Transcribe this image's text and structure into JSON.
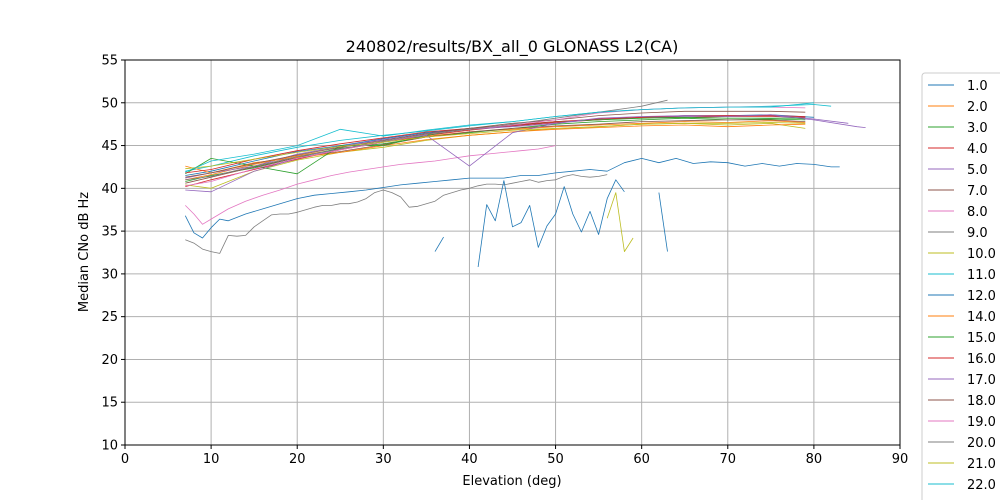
{
  "chart_data": {
    "type": "line",
    "title": "240802/results/BX_all_0 GLONASS L2(CA)",
    "xlabel": "Elevation (deg)",
    "ylabel": "Median CNo dB Hz",
    "xlim": [
      0,
      90
    ],
    "ylim": [
      10,
      55
    ],
    "xticks": [
      0,
      10,
      20,
      30,
      40,
      50,
      60,
      70,
      80,
      90
    ],
    "yticks": [
      10,
      15,
      20,
      25,
      30,
      35,
      40,
      45,
      50,
      55
    ],
    "grid": true,
    "legend_placement": "right, outside plot",
    "series": [
      {
        "name": "1.0",
        "color": "#1f77b4",
        "x": [
          7,
          10,
          15,
          20,
          25,
          30,
          35,
          40,
          45,
          50,
          55,
          60,
          65,
          70,
          75,
          80
        ],
        "y": [
          41.5,
          42.0,
          43.2,
          44.3,
          45.0,
          45.8,
          46.5,
          47.0,
          47.3,
          47.8,
          48.0,
          48.3,
          48.5,
          48.5,
          48.6,
          48.3
        ]
      },
      {
        "name": "2.0",
        "color": "#ff7f0e",
        "x": [
          7,
          10,
          15,
          20,
          25,
          30,
          35,
          40,
          45,
          50,
          55,
          60,
          65,
          70,
          75,
          79
        ],
        "y": [
          41.0,
          41.6,
          42.8,
          43.8,
          44.6,
          45.4,
          46.1,
          46.6,
          46.9,
          47.2,
          47.4,
          47.6,
          47.8,
          47.7,
          47.9,
          47.7
        ]
      },
      {
        "name": "3.0",
        "color": "#2ca02c",
        "x": [
          7,
          10,
          15,
          20,
          25,
          30,
          35,
          40,
          45,
          50,
          55,
          60,
          65,
          70,
          75,
          79
        ],
        "y": [
          40.8,
          41.5,
          42.4,
          43.6,
          44.7,
          45.2,
          46.0,
          46.5,
          47.0,
          47.5,
          47.8,
          48.0,
          48.2,
          48.0,
          48.1,
          48.0
        ]
      },
      {
        "name": "4.0",
        "color": "#d62728",
        "x": [
          7,
          10,
          15,
          20,
          25,
          30,
          35,
          40,
          45,
          50,
          55,
          60,
          65,
          70,
          75,
          79
        ],
        "y": [
          40.2,
          41.0,
          42.2,
          43.4,
          44.5,
          45.4,
          46.2,
          46.8,
          47.3,
          47.7,
          48.0,
          48.3,
          48.3,
          48.4,
          48.4,
          48.3
        ]
      },
      {
        "name": "5.0",
        "color": "#9467bd",
        "x": [
          7,
          10,
          15,
          20,
          25,
          30,
          35,
          40,
          45,
          50,
          55,
          60,
          65,
          70,
          75,
          80,
          85,
          86
        ],
        "y": [
          41.2,
          41.8,
          42.6,
          44.0,
          44.9,
          45.7,
          46.4,
          46.9,
          47.2,
          47.6,
          48.1,
          48.3,
          48.4,
          48.5,
          48.5,
          48.0,
          47.2,
          47.1
        ]
      },
      {
        "name": "7.0",
        "color": "#8c564b",
        "x": [
          7,
          10,
          15,
          20,
          25,
          30,
          35,
          40,
          45,
          50,
          55,
          60,
          65,
          70,
          75,
          79
        ],
        "y": [
          40.6,
          41.3,
          42.5,
          43.6,
          44.3,
          45.1,
          46.0,
          46.6,
          47.0,
          47.3,
          47.5,
          47.8,
          47.9,
          48.0,
          48.0,
          47.8
        ]
      },
      {
        "name": "8.0",
        "color": "#e377c2",
        "x": [
          7,
          8,
          9,
          10,
          12,
          14,
          16,
          18,
          20,
          22,
          24,
          26,
          28,
          30,
          32,
          34,
          36,
          38,
          40,
          42,
          44,
          46,
          48,
          50
        ],
        "y": [
          38.0,
          37.0,
          35.8,
          36.4,
          37.6,
          38.5,
          39.2,
          39.8,
          40.5,
          41.0,
          41.5,
          41.9,
          42.2,
          42.5,
          42.8,
          43.0,
          43.2,
          43.5,
          43.8,
          44.0,
          44.2,
          44.4,
          44.6,
          45.0
        ]
      },
      {
        "name": "9.0",
        "color": "#7f7f7f",
        "x": [
          7,
          8,
          9,
          10,
          11,
          12,
          13,
          14,
          15,
          16,
          17,
          18,
          19,
          20,
          21,
          22,
          23,
          24,
          25,
          26,
          27,
          28,
          29,
          30,
          31,
          32,
          33,
          34,
          35,
          36,
          37,
          38,
          39,
          40,
          41,
          42,
          43,
          44,
          45,
          46,
          47,
          48,
          49,
          50,
          51,
          52,
          53,
          54,
          55,
          56
        ],
        "y": [
          34.0,
          33.6,
          32.9,
          32.6,
          32.4,
          34.5,
          34.4,
          34.5,
          35.5,
          36.2,
          36.9,
          37.0,
          37.0,
          37.2,
          37.5,
          37.8,
          38.0,
          38.0,
          38.2,
          38.2,
          38.4,
          38.8,
          39.5,
          39.8,
          39.5,
          39.0,
          37.8,
          37.9,
          38.2,
          38.5,
          39.2,
          39.5,
          39.8,
          40.0,
          40.3,
          40.5,
          40.5,
          40.4,
          40.6,
          40.8,
          41.0,
          40.7,
          40.9,
          41.0,
          41.4,
          41.6,
          41.4,
          41.3,
          41.4,
          41.6
        ]
      },
      {
        "name": "10.0",
        "color": "#bcbd22",
        "x": [
          7,
          10,
          15,
          20,
          25,
          30,
          35,
          40,
          45,
          50,
          55,
          60,
          65,
          70,
          75,
          79
        ],
        "y": [
          40.4,
          40.0,
          42.0,
          43.3,
          44.2,
          44.8,
          45.6,
          46.2,
          46.6,
          47.0,
          47.2,
          47.5,
          47.6,
          47.4,
          47.6,
          47.0
        ]
      },
      {
        "name": "11.0",
        "color": "#17becf",
        "x": [
          7,
          10,
          15,
          20,
          25,
          30,
          35,
          40,
          45,
          50,
          55,
          60,
          65,
          70,
          75,
          80,
          82
        ],
        "y": [
          42.0,
          42.6,
          43.8,
          44.8,
          45.6,
          46.2,
          46.7,
          47.3,
          47.8,
          48.4,
          48.9,
          49.2,
          49.4,
          49.5,
          49.6,
          49.8,
          49.6
        ]
      },
      {
        "name": "12.0",
        "color": "#1f77b4",
        "x": [
          7,
          8,
          9,
          10,
          11,
          12,
          14,
          16,
          18,
          20,
          22,
          24,
          26,
          28,
          30,
          32,
          34,
          36,
          38,
          40,
          42,
          44,
          46,
          48,
          50,
          52,
          54,
          56,
          58,
          60,
          62,
          64,
          66,
          68,
          70,
          72,
          74,
          76,
          78,
          80,
          82,
          83
        ],
        "y": [
          36.8,
          34.8,
          34.2,
          35.4,
          36.4,
          36.2,
          37.0,
          37.6,
          38.2,
          38.8,
          39.2,
          39.4,
          39.6,
          39.8,
          40.1,
          40.4,
          40.6,
          40.8,
          41.0,
          41.2,
          41.2,
          41.2,
          41.5,
          41.5,
          41.8,
          42.0,
          42.2,
          42.0,
          43.0,
          43.5,
          43.0,
          43.5,
          42.9,
          43.1,
          43.0,
          42.6,
          42.9,
          42.6,
          42.9,
          42.8,
          42.5,
          42.5
        ]
      },
      {
        "name": "14.0",
        "color": "#ff7f0e",
        "x": [
          7,
          10,
          15,
          20,
          25,
          30,
          35,
          40,
          45,
          50,
          55,
          60,
          65,
          70,
          75,
          79
        ],
        "y": [
          42.6,
          41.8,
          43.0,
          43.6,
          44.2,
          45.0,
          45.7,
          46.2,
          46.6,
          46.9,
          47.1,
          47.3,
          47.4,
          47.2,
          47.4,
          47.5
        ]
      },
      {
        "name": "15.0",
        "color": "#2ca02c",
        "x": [
          7,
          10,
          15,
          20,
          25,
          30,
          35,
          40,
          45,
          50,
          55,
          60,
          65,
          70,
          75,
          79
        ],
        "y": [
          41.7,
          43.5,
          42.6,
          41.7,
          45.0,
          45.0,
          46.2,
          47.0,
          47.4,
          47.8,
          48.0,
          48.2,
          48.3,
          48.2,
          48.2,
          48.2
        ]
      },
      {
        "name": "16.0",
        "color": "#d62728",
        "x": [
          7,
          10,
          15,
          20,
          25,
          30,
          35,
          40,
          45,
          50,
          55,
          60,
          65,
          70,
          75,
          79
        ],
        "y": [
          41.8,
          42.2,
          43.4,
          44.4,
          45.2,
          45.9,
          46.6,
          47.0,
          47.4,
          47.8,
          48.1,
          48.3,
          48.5,
          48.5,
          48.5,
          48.4
        ]
      },
      {
        "name": "17.0",
        "color": "#9467bd",
        "x": [
          7,
          10,
          15,
          20,
          25,
          30,
          35,
          40,
          45,
          50,
          55,
          60,
          65,
          70,
          75,
          80,
          84
        ],
        "y": [
          39.8,
          39.6,
          42.0,
          43.5,
          44.6,
          45.5,
          46.2,
          42.6,
          46.5,
          47.6,
          48.2,
          48.4,
          48.5,
          48.4,
          48.6,
          48.1,
          47.6
        ]
      },
      {
        "name": "18.0",
        "color": "#8c564b",
        "x": [
          7,
          10,
          15,
          20,
          25,
          30,
          35,
          40,
          45,
          50,
          55,
          60,
          65,
          70,
          75,
          79
        ],
        "y": [
          41.3,
          41.8,
          42.9,
          43.9,
          44.8,
          45.6,
          46.4,
          47.0,
          47.6,
          48.0,
          48.5,
          48.8,
          49.0,
          49.0,
          49.0,
          48.9
        ]
      },
      {
        "name": "19.0",
        "color": "#e377c2",
        "x": [
          7,
          10,
          15,
          20,
          25,
          30,
          35,
          40,
          45,
          50,
          55,
          60,
          65,
          70,
          75,
          79
        ],
        "y": [
          40.3,
          40.8,
          42.3,
          43.5,
          44.5,
          45.4,
          46.3,
          46.9,
          47.4,
          48.0,
          48.8,
          49.2,
          49.4,
          49.5,
          49.5,
          49.4
        ]
      },
      {
        "name": "20.0",
        "color": "#7f7f7f",
        "x": [
          7,
          10,
          15,
          20,
          25,
          30,
          35,
          40,
          45,
          50,
          55,
          60,
          63
        ],
        "y": [
          41.0,
          41.4,
          42.6,
          43.7,
          44.6,
          45.5,
          46.3,
          46.9,
          47.5,
          48.2,
          48.9,
          49.6,
          50.3
        ]
      },
      {
        "name": "21.0",
        "color": "#bcbd22",
        "x": [
          7,
          10,
          15,
          20,
          25,
          30,
          35,
          40,
          45,
          50,
          55,
          60,
          65,
          70,
          75,
          79
        ],
        "y": [
          42.3,
          42.6,
          43.4,
          44.2,
          44.9,
          45.4,
          46.0,
          46.4,
          46.8,
          47.0,
          47.2,
          47.5,
          47.6,
          47.6,
          47.7,
          47.6
        ]
      },
      {
        "name": "22.0",
        "color": "#17becf",
        "x": [
          7,
          10,
          15,
          20,
          25,
          30,
          35,
          40,
          45,
          50,
          55,
          60,
          65,
          70,
          75,
          80
        ],
        "y": [
          41.9,
          43.2,
          44.0,
          45.0,
          46.9,
          46.1,
          46.8,
          47.4,
          47.8,
          48.4,
          48.9,
          49.2,
          49.4,
          49.5,
          49.5,
          50.0
        ]
      }
    ],
    "fragments": [
      {
        "color": "#1f77b4",
        "x": [
          36,
          37
        ],
        "y": [
          32.6,
          34.3
        ]
      },
      {
        "color": "#1f77b4",
        "x": [
          41,
          42,
          43,
          44,
          45,
          46,
          47,
          48,
          49,
          50,
          51,
          52,
          53,
          54,
          55,
          56,
          57,
          58
        ],
        "y": [
          30.8,
          38.1,
          36.2,
          40.9,
          35.5,
          36.0,
          38.0,
          33.1,
          35.6,
          37.0,
          40.2,
          37.0,
          34.9,
          37.3,
          34.6,
          38.8,
          41.0,
          39.6
        ]
      },
      {
        "color": "#1f77b4",
        "x": [
          62,
          63
        ],
        "y": [
          39.5,
          32.6
        ]
      },
      {
        "color": "#bcbd22",
        "x": [
          56,
          57,
          58,
          59
        ],
        "y": [
          36.5,
          39.5,
          32.6,
          34.2
        ]
      }
    ]
  }
}
